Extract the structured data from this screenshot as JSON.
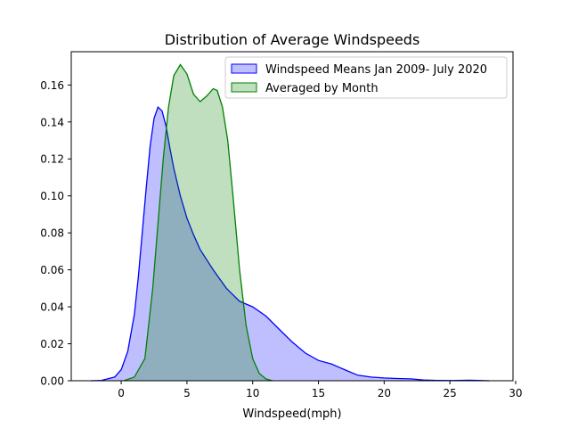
{
  "chart_data": {
    "type": "area",
    "title": "Distribution of Average Windspeeds",
    "xlabel": "Windspeed(mph)",
    "ylabel": "",
    "xlim": [
      -3.8,
      29.8
    ],
    "ylim": [
      0,
      0.178
    ],
    "x_ticks": [
      0,
      5,
      10,
      15,
      20,
      25,
      30
    ],
    "y_ticks": [
      0.0,
      0.02,
      0.04,
      0.06,
      0.08,
      0.1,
      0.12,
      0.14,
      0.16
    ],
    "x_tick_labels": [
      "0",
      "5",
      "10",
      "15",
      "20",
      "25",
      "30"
    ],
    "y_tick_labels": [
      "0.00",
      "0.02",
      "0.04",
      "0.06",
      "0.08",
      "0.10",
      "0.12",
      "0.14",
      "0.16"
    ],
    "grid": false,
    "legend_position": "top-right",
    "series": [
      {
        "name": "Windspeed Means Jan 2009- July 2020",
        "color": "#0000ff",
        "fill": "#bfbfff",
        "points": [
          [
            -2.3,
            0.0
          ],
          [
            -1.5,
            0.0002
          ],
          [
            -0.5,
            0.002
          ],
          [
            0.0,
            0.006
          ],
          [
            0.5,
            0.016
          ],
          [
            1.0,
            0.036
          ],
          [
            1.3,
            0.056
          ],
          [
            1.6,
            0.08
          ],
          [
            1.9,
            0.104
          ],
          [
            2.2,
            0.127
          ],
          [
            2.5,
            0.142
          ],
          [
            2.8,
            0.148
          ],
          [
            3.1,
            0.146
          ],
          [
            3.4,
            0.138
          ],
          [
            3.7,
            0.126
          ],
          [
            4.0,
            0.115
          ],
          [
            4.5,
            0.1
          ],
          [
            5.0,
            0.088
          ],
          [
            5.5,
            0.079
          ],
          [
            6.0,
            0.071
          ],
          [
            7.0,
            0.06
          ],
          [
            8.0,
            0.05
          ],
          [
            9.0,
            0.043
          ],
          [
            10.0,
            0.04
          ],
          [
            11.0,
            0.035
          ],
          [
            12.0,
            0.028
          ],
          [
            13.0,
            0.021
          ],
          [
            14.0,
            0.015
          ],
          [
            15.0,
            0.011
          ],
          [
            16.0,
            0.009
          ],
          [
            17.0,
            0.006
          ],
          [
            18.0,
            0.003
          ],
          [
            19.0,
            0.002
          ],
          [
            20.0,
            0.0015
          ],
          [
            21.0,
            0.0012
          ],
          [
            22.0,
            0.001
          ],
          [
            23.0,
            0.0004
          ],
          [
            24.0,
            0.0002
          ],
          [
            25.0,
            0.0001
          ],
          [
            26.5,
            0.0003
          ],
          [
            28.0,
            0.0
          ]
        ]
      },
      {
        "name": "Averaged by Month",
        "color": "#008000",
        "fill": "#bfe0bf",
        "points": [
          [
            0.2,
            0.0
          ],
          [
            1.0,
            0.002
          ],
          [
            1.8,
            0.012
          ],
          [
            2.4,
            0.05
          ],
          [
            2.8,
            0.085
          ],
          [
            3.2,
            0.12
          ],
          [
            3.6,
            0.148
          ],
          [
            4.0,
            0.165
          ],
          [
            4.5,
            0.171
          ],
          [
            5.0,
            0.166
          ],
          [
            5.5,
            0.155
          ],
          [
            6.0,
            0.151
          ],
          [
            6.5,
            0.154
          ],
          [
            7.0,
            0.158
          ],
          [
            7.3,
            0.157
          ],
          [
            7.7,
            0.148
          ],
          [
            8.1,
            0.13
          ],
          [
            8.5,
            0.1
          ],
          [
            9.0,
            0.06
          ],
          [
            9.5,
            0.03
          ],
          [
            10.0,
            0.012
          ],
          [
            10.5,
            0.004
          ],
          [
            11.0,
            0.001
          ],
          [
            11.5,
            0.0
          ]
        ]
      }
    ]
  }
}
